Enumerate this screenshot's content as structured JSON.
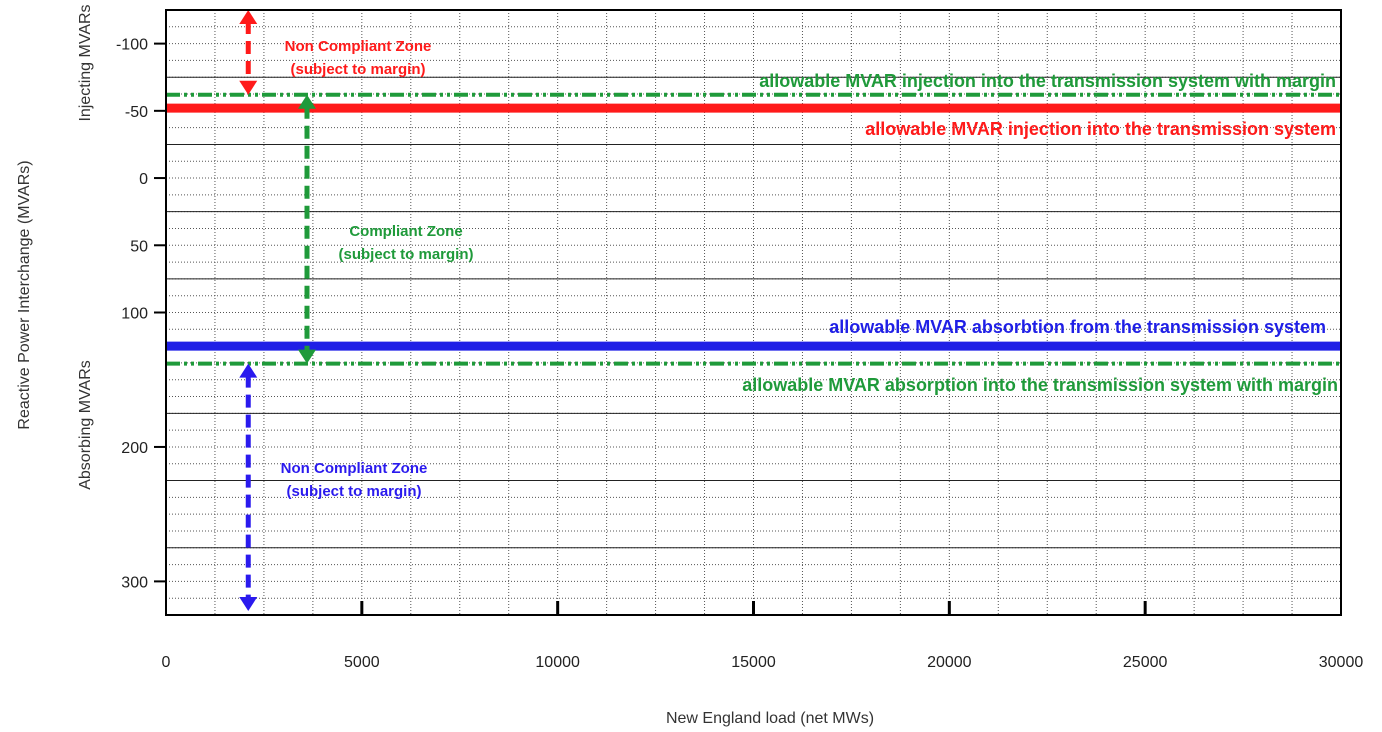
{
  "chart_data": {
    "type": "line",
    "title": "",
    "xlabel": "New England load (net MWs)",
    "ylabel": "Reactive Power Interchange (MVARs)",
    "ylabel_top": "Injecting MVARs",
    "ylabel_bottom": "Absorbing MVARs",
    "xlim": [
      0,
      30000
    ],
    "ylim": [
      -125,
      325
    ],
    "y_inverted": true,
    "grid": true,
    "x_ticks": [
      0,
      5000,
      10000,
      15000,
      20000,
      25000,
      30000
    ],
    "x_tick_labels": [
      "0",
      "5000",
      "10000",
      "15000",
      "20000",
      "25000",
      "30000"
    ],
    "y_ticks": [
      -100,
      -50,
      0,
      50,
      100,
      200,
      300
    ],
    "y_tick_labels": [
      "-100",
      "-50",
      "0",
      "50",
      "100",
      "200",
      "300"
    ],
    "series": [
      {
        "name": "allowable MVAR injection into the transmission system",
        "color": "#ff1a1a",
        "style": "solid",
        "x": [
          0,
          30000
        ],
        "y": [
          -52,
          -52
        ]
      },
      {
        "name": "allowable MVAR injection into the transmission system with margin",
        "color": "#1f9a3a",
        "style": "dash-dot",
        "x": [
          0,
          30000
        ],
        "y": [
          -62,
          -62
        ]
      },
      {
        "name": "allowable MVAR absorbtion from the transmission system",
        "color": "#1f1fe6",
        "style": "solid",
        "x": [
          0,
          30000
        ],
        "y": [
          125,
          125
        ]
      },
      {
        "name": "allowable MVAR absorption into the transmission system with margin",
        "color": "#1f9a3a",
        "style": "dash-dot",
        "x": [
          0,
          30000
        ],
        "y": [
          138,
          138
        ]
      }
    ],
    "annotations": [
      {
        "id": "noncompliant-top",
        "lines": [
          "Non Compliant Zone",
          "(subject to margin)"
        ],
        "color": "#ff1a1a"
      },
      {
        "id": "compliant",
        "lines": [
          "Compliant Zone",
          "(subject to margin)"
        ],
        "color": "#1f9a3a"
      },
      {
        "id": "noncompliant-bottom",
        "lines": [
          "Non Compliant Zone",
          "(subject to margin)"
        ],
        "color": "#2a1aee"
      }
    ],
    "arrows": [
      {
        "id": "arrow-noncompliant-top",
        "x": 2100,
        "y_from": -125,
        "y_to": -62,
        "color": "#ff1a1a"
      },
      {
        "id": "arrow-compliant",
        "x": 3600,
        "y_from": -62,
        "y_to": 138,
        "color": "#1f9a3a"
      },
      {
        "id": "arrow-noncompliant-bottom",
        "x": 2100,
        "y_from": 138,
        "y_to": 322,
        "color": "#2a1aee"
      }
    ]
  }
}
